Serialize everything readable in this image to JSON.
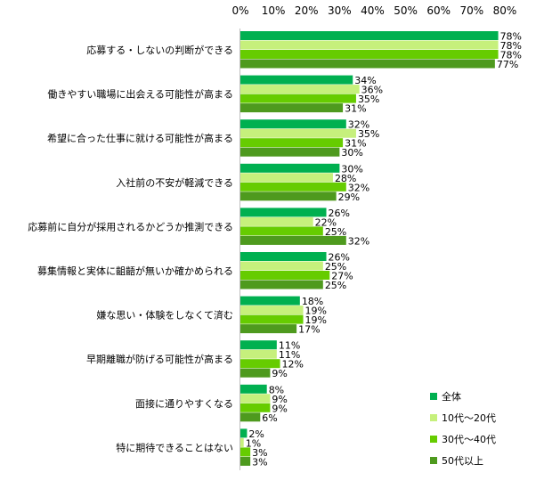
{
  "chart_data": {
    "type": "bar",
    "orientation": "horizontal",
    "xlim": [
      0,
      80
    ],
    "ticks": [
      "0%",
      "10%",
      "20%",
      "30%",
      "40%",
      "50%",
      "60%",
      "70%",
      "80%"
    ],
    "tick_values": [
      0,
      10,
      20,
      30,
      40,
      50,
      60,
      70,
      80
    ],
    "grid": false,
    "legend_position": "bottom-right",
    "value_suffix": "%",
    "categories": [
      "応募する・しないの判断ができる",
      "働きやすい職場に出会える可能性が高まる",
      "希望に合った仕事に就ける可能性が高まる",
      "入社前の不安が軽減できる",
      "応募前に自分が採用されるかどうか推測できる",
      "募集情報と実体に齟齬が無いか確かめられる",
      "嫌な思い・体験をしなくて済む",
      "早期離職が防げる可能性が高まる",
      "面接に通りやすくなる",
      "特に期待できることはない"
    ],
    "series": [
      {
        "name": "全体",
        "color": "#00b050",
        "values": [
          78,
          34,
          32,
          30,
          26,
          26,
          18,
          11,
          8,
          2
        ]
      },
      {
        "name": "10代～20代",
        "color": "#c6f07c",
        "values": [
          78,
          36,
          35,
          28,
          22,
          25,
          19,
          11,
          9,
          1
        ]
      },
      {
        "name": "30代～40代",
        "color": "#66cc00",
        "values": [
          78,
          35,
          31,
          32,
          25,
          27,
          19,
          12,
          9,
          3
        ]
      },
      {
        "name": "50代以上",
        "color": "#4e9a1e",
        "values": [
          77,
          31,
          30,
          29,
          32,
          25,
          17,
          9,
          6,
          3
        ]
      }
    ]
  }
}
